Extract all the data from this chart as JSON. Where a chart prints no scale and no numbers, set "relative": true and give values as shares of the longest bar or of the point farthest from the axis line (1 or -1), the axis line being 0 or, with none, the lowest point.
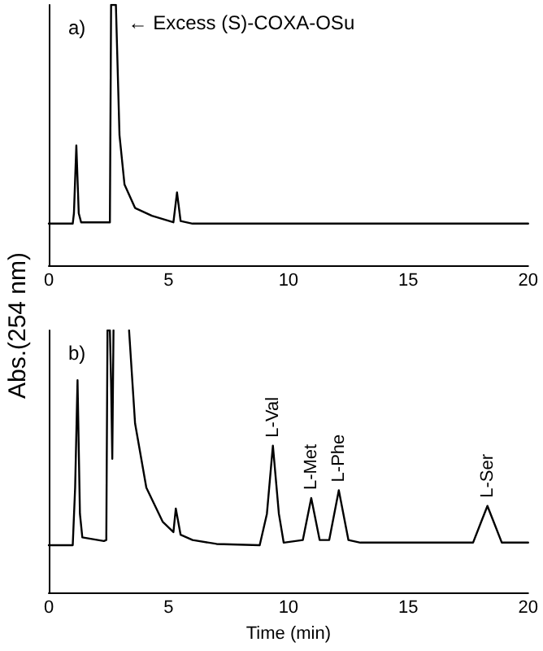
{
  "chart_data": [
    {
      "type": "line",
      "relative": true,
      "ylabel": "Abs.(254 nm)",
      "xlim": [
        0,
        20
      ],
      "xticks": [
        0,
        5,
        10,
        15,
        20
      ],
      "tick_labels": "x",
      "grid": false,
      "marker": "none",
      "line_style": "solid",
      "annotations": [
        "a)",
        {
          "text": "← Excess (S)-COXA-OSu",
          "x": 2.9,
          "y": 0.93
        }
      ],
      "series": [
        {
          "color": "#000000",
          "x": [
            0,
            1.0,
            1.05,
            1.15,
            1.25,
            1.35,
            2.55,
            2.6,
            2.8,
            2.95,
            3.16,
            3.6,
            4.3,
            5.2,
            5.35,
            5.5,
            6,
            20
          ],
          "values": [
            0.16,
            0.16,
            0.2,
            0.46,
            0.2,
            0.165,
            0.165,
            1,
            1,
            0.5,
            0.31,
            0.22,
            0.19,
            0.165,
            0.28,
            0.17,
            0.16,
            0.16
          ]
        }
      ]
    },
    {
      "type": "line",
      "relative": true,
      "xlabel": "Time (min)",
      "xlim": [
        0,
        20
      ],
      "xticks": [
        0,
        5,
        10,
        15,
        20
      ],
      "tick_labels": "x",
      "grid": false,
      "marker": "none",
      "line_style": "solid",
      "annotations": [
        "b)",
        {
          "text": "L-Val",
          "x": 9.35,
          "y": 0.56
        },
        {
          "text": "L-Met",
          "x": 10.95,
          "y": 0.36
        },
        {
          "text": "L-Phe",
          "x": 12.1,
          "y": 0.39
        },
        {
          "text": "L-Ser",
          "x": 18.3,
          "y": 0.33
        }
      ],
      "series": [
        {
          "color": "#000000",
          "x": [
            0,
            1.0,
            1.1,
            1.2,
            1.3,
            1.4,
            2.3,
            2.4,
            2.45,
            2.55,
            2.6,
            2.65,
            2.7,
            2.75,
            3.35,
            3.6,
            4.07,
            4.75,
            5.2,
            5.3,
            5.5,
            6,
            7,
            8.8,
            9.1,
            9.35,
            9.6,
            9.8,
            10.6,
            10.95,
            11.3,
            11.7,
            12.1,
            12.5,
            13,
            17.7,
            18.0,
            18.3,
            18.6,
            18.9,
            20
          ],
          "values": [
            0.18,
            0.18,
            0.4,
            0.81,
            0.3,
            0.21,
            0.196,
            0.2,
            1,
            1,
            0.8,
            0.51,
            1,
            null,
            1,
            0.645,
            0.4,
            0.27,
            0.23,
            0.32,
            0.22,
            0.2,
            0.185,
            0.18,
            0.3,
            0.56,
            0.3,
            0.19,
            0.2,
            0.36,
            0.2,
            0.2,
            0.39,
            0.2,
            0.19,
            0.19,
            0.26,
            0.33,
            0.26,
            0.19,
            0.19
          ]
        }
      ]
    }
  ]
}
